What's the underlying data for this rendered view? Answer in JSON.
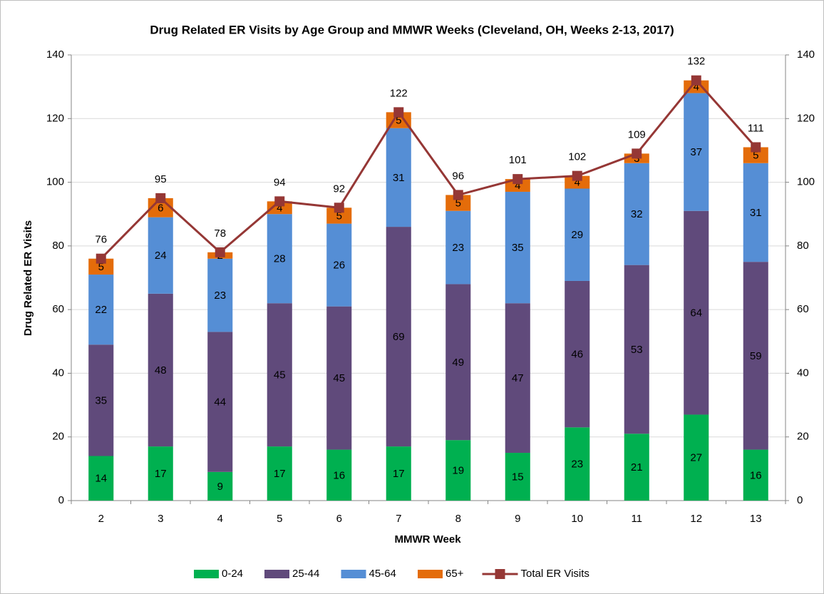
{
  "chart_data": {
    "type": "bar",
    "stacked": true,
    "title": "Drug Related ER Visits by Age Group and MMWR Weeks (Cleveland, OH, Weeks 2-13, 2017)",
    "x_label": "MMWR Week",
    "y_label": "Drug Related ER Visits",
    "categories": [
      "2",
      "3",
      "4",
      "5",
      "6",
      "7",
      "8",
      "9",
      "10",
      "11",
      "12",
      "13"
    ],
    "series": [
      {
        "name": "0-24",
        "color": "#00b050",
        "values": [
          14,
          17,
          9,
          17,
          16,
          17,
          19,
          15,
          23,
          21,
          27,
          16
        ]
      },
      {
        "name": "25-44",
        "color": "#604a7b",
        "values": [
          35,
          48,
          44,
          45,
          45,
          69,
          49,
          47,
          46,
          53,
          64,
          59
        ]
      },
      {
        "name": "45-64",
        "color": "#558ed5",
        "values": [
          22,
          24,
          23,
          28,
          26,
          31,
          23,
          35,
          29,
          32,
          37,
          31
        ]
      },
      {
        "name": "65+",
        "color": "#e46c0a",
        "values": [
          5,
          6,
          2,
          4,
          5,
          5,
          5,
          4,
          4,
          3,
          4,
          5
        ]
      },
      {
        "name": "Total ER Visits",
        "color": "#953735",
        "type": "line",
        "axis": "y2",
        "values": [
          76,
          95,
          78,
          94,
          92,
          122,
          96,
          101,
          102,
          109,
          132,
          111
        ]
      }
    ],
    "ylim": [
      0,
      140
    ],
    "yticks": [
      0,
      20,
      40,
      60,
      80,
      100,
      120,
      140
    ],
    "y2lim": [
      0,
      140
    ],
    "y2ticks": [
      0,
      20,
      40,
      60,
      80,
      100,
      120,
      140
    ],
    "grid": true,
    "legend": "bottom"
  }
}
